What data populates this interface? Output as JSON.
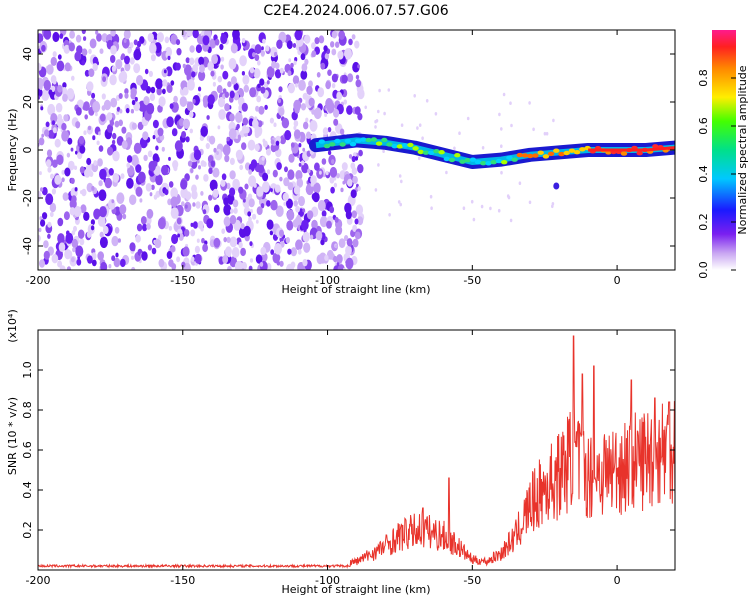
{
  "title": "C2E4.2024.006.07.57.G06",
  "chart_data": [
    {
      "type": "heatmap",
      "xlabel": "Height of straight line (km)",
      "ylabel": "Frequency (Hz)",
      "xlim": [
        -200,
        20
      ],
      "ylim": [
        -50,
        50
      ],
      "x_ticks": [
        "-200",
        "-150",
        "-100",
        "-50",
        "0"
      ],
      "y_ticks": [
        "40",
        "20",
        "0",
        "-20",
        "-40"
      ],
      "grid": false,
      "colorbar": {
        "label": "Normalized spectral amplitude",
        "range": [
          0,
          1
        ],
        "ticks": [
          "0.0",
          "0.2",
          "0.4",
          "0.6",
          "0.8"
        ]
      },
      "signal_track": [
        {
          "x": -104,
          "y": 2
        },
        {
          "x": -90,
          "y": 4
        },
        {
          "x": -80,
          "y": 3
        },
        {
          "x": -70,
          "y": 1
        },
        {
          "x": -60,
          "y": -2
        },
        {
          "x": -50,
          "y": -5
        },
        {
          "x": -40,
          "y": -4
        },
        {
          "x": -30,
          "y": -2
        },
        {
          "x": -20,
          "y": -1
        },
        {
          "x": -10,
          "y": 0
        },
        {
          "x": 0,
          "y": 0
        },
        {
          "x": 10,
          "y": 0
        },
        {
          "x": 20,
          "y": 1
        }
      ],
      "noise_region": [
        -200,
        -88
      ]
    },
    {
      "type": "line",
      "xlabel": "Height of straight line (km)",
      "ylabel": "SNR (10 * v/v)",
      "y_multiplier": "(x10⁴)",
      "xlim": [
        -200,
        20
      ],
      "ylim": [
        0,
        1.2
      ],
      "x_ticks": [
        "-200",
        "-150",
        "-100",
        "-50",
        "0"
      ],
      "y_ticks": [
        "0.2",
        "0.4",
        "0.6",
        "0.8",
        "1.0"
      ],
      "grid": false,
      "series": [
        {
          "color": "#e8332b",
          "envelope": [
            {
              "x": -200,
              "y": 0.02
            },
            {
              "x": -150,
              "y": 0.02
            },
            {
              "x": -100,
              "y": 0.03
            },
            {
              "x": -90,
              "y": 0.05
            },
            {
              "x": -82,
              "y": 0.12
            },
            {
              "x": -75,
              "y": 0.2
            },
            {
              "x": -68,
              "y": 0.24
            },
            {
              "x": -60,
              "y": 0.2
            },
            {
              "x": -55,
              "y": 0.14
            },
            {
              "x": -50,
              "y": 0.06
            },
            {
              "x": -45,
              "y": 0.05
            },
            {
              "x": -40,
              "y": 0.1
            },
            {
              "x": -35,
              "y": 0.2
            },
            {
              "x": -30,
              "y": 0.38
            },
            {
              "x": -25,
              "y": 0.48
            },
            {
              "x": -20,
              "y": 0.56
            },
            {
              "x": -15,
              "y": 0.68
            },
            {
              "x": -10,
              "y": 0.55
            },
            {
              "x": -5,
              "y": 0.58
            },
            {
              "x": 0,
              "y": 0.6
            },
            {
              "x": 5,
              "y": 0.63
            },
            {
              "x": 10,
              "y": 0.66
            },
            {
              "x": 15,
              "y": 0.7
            },
            {
              "x": 20,
              "y": 0.74
            }
          ],
          "peaks": [
            {
              "x": -58,
              "y": 0.46
            },
            {
              "x": -67,
              "y": 0.31
            },
            {
              "x": -15,
              "y": 1.17
            },
            {
              "x": -12,
              "y": 0.98
            },
            {
              "x": -8,
              "y": 1.02
            },
            {
              "x": 5,
              "y": 0.95
            },
            {
              "x": 13,
              "y": 0.86
            },
            {
              "x": 18,
              "y": 0.84
            }
          ]
        }
      ]
    }
  ]
}
